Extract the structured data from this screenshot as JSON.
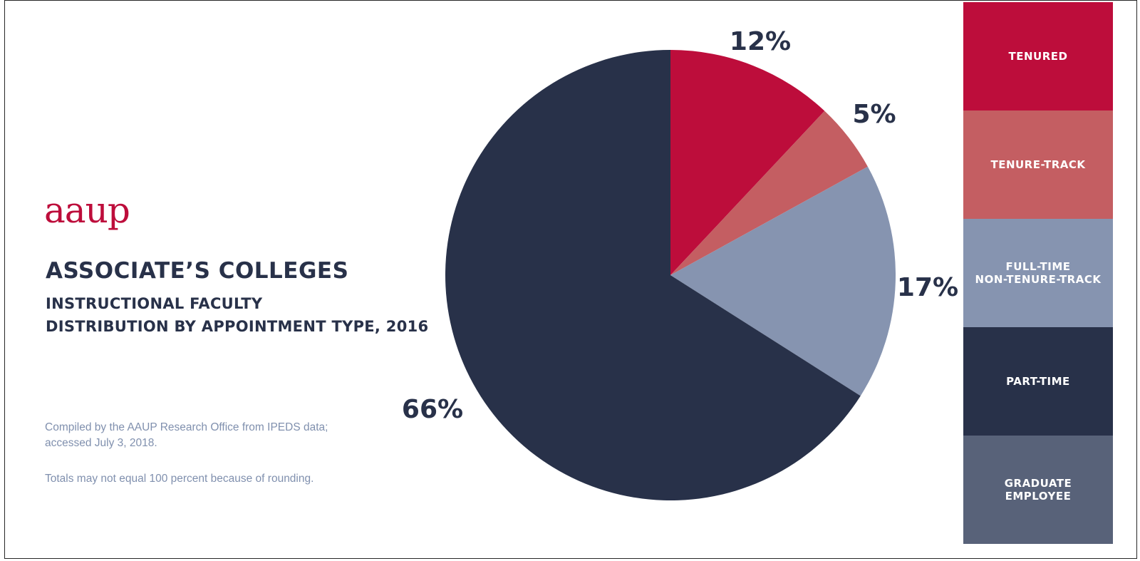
{
  "logo": {
    "text": "aaup"
  },
  "heading": {
    "title": "ASSOCIATE’S COLLEGES",
    "subtitle_line1": "INSTRUCTIONAL FACULTY",
    "subtitle_line2": "DISTRIBUTION BY APPOINTMENT TYPE, 2016"
  },
  "notes": {
    "source_line1": "Compiled by the AAUP Research Office from IPEDS data;",
    "source_line2": "accessed July 3, 2018.",
    "rounding": "Totals may not equal 100 percent because of rounding."
  },
  "legend": [
    {
      "line1": "TENURED",
      "line2": "",
      "color": "#bd0d3b"
    },
    {
      "line1": "TENURE-TRACK",
      "line2": "",
      "color": "#c45e62"
    },
    {
      "line1": "FULL-TIME",
      "line2": "NON-TENURE-TRACK",
      "color": "#8694b0"
    },
    {
      "line1": "PART-TIME",
      "line2": "",
      "color": "#283149"
    },
    {
      "line1": "GRADUATE",
      "line2": "EMPLOYEE",
      "color": "#586279"
    }
  ],
  "chart_data": {
    "type": "pie",
    "categories": [
      "Tenured",
      "Tenure-track",
      "Full-time non-tenure-track",
      "Part-time",
      "Graduate employee"
    ],
    "values": [
      12,
      5,
      17,
      66,
      0
    ],
    "labels": [
      "12%",
      "5%",
      "17%",
      "66%",
      ""
    ],
    "colors": [
      "#bd0d3b",
      "#c45e62",
      "#8694b0",
      "#283149",
      "#586279"
    ],
    "start": "12 o'clock, clockwise",
    "legend_position": "right"
  }
}
